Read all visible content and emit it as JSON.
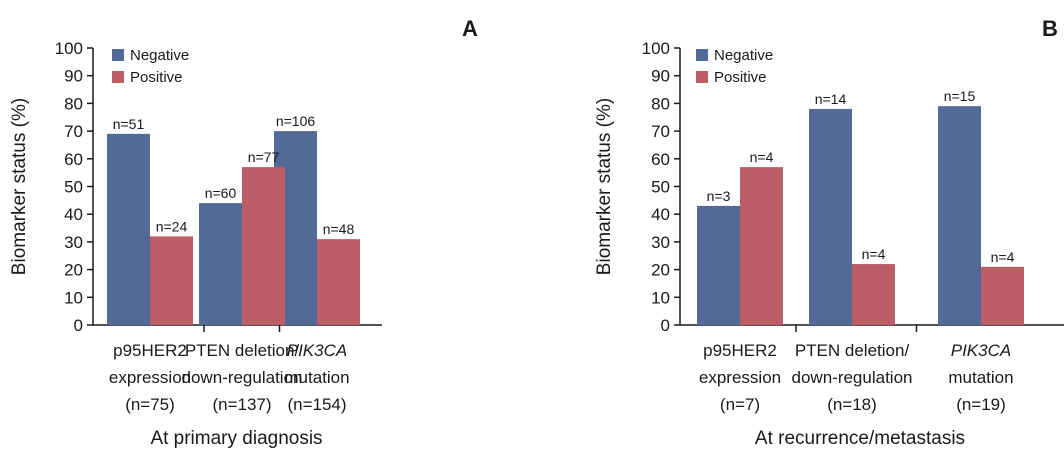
{
  "colors": {
    "negative": "#536a98",
    "positive": "#bc5e68",
    "axis": "#1a1a1a"
  },
  "chart_data": [
    {
      "type": "bar",
      "panel": "A",
      "xlabel": "At primary diagnosis",
      "ylabel": "Biomarker status (%)",
      "ylim": [
        0,
        100
      ],
      "yticks": [
        0,
        10,
        20,
        30,
        40,
        50,
        60,
        70,
        80,
        90,
        100
      ],
      "grid": false,
      "legend": "top-left",
      "categories": [
        {
          "line1": "p95HER2",
          "line2": "expression",
          "line3": "(n=75)",
          "italic1": false
        },
        {
          "line1": "PTEN deletion/",
          "line2": "down-regulation",
          "line3": "(n=137)",
          "italic1": false
        },
        {
          "line1": "PIK3CA",
          "line2": "mutation",
          "line3": "(n=154)",
          "italic1": true
        }
      ],
      "series": [
        {
          "name": "Negative",
          "values": [
            69,
            44,
            70
          ],
          "labels": [
            "n=51",
            "n=60",
            "n=106"
          ]
        },
        {
          "name": "Positive",
          "values": [
            32,
            57,
            31
          ],
          "labels": [
            "n=24",
            "n=77",
            "n=48"
          ]
        }
      ]
    },
    {
      "type": "bar",
      "panel": "B",
      "xlabel": "At recurrence/metastasis",
      "ylabel": "Biomarker status (%)",
      "ylim": [
        0,
        100
      ],
      "yticks": [
        0,
        10,
        20,
        30,
        40,
        50,
        60,
        70,
        80,
        90,
        100
      ],
      "grid": false,
      "legend": "top-left",
      "categories": [
        {
          "line1": "p95HER2",
          "line2": "expression",
          "line3": "(n=7)",
          "italic1": false
        },
        {
          "line1": "PTEN deletion/",
          "line2": "down-regulation",
          "line3": "(n=18)",
          "italic1": false
        },
        {
          "line1": "PIK3CA",
          "line2": "mutation",
          "line3": "(n=19)",
          "italic1": true
        }
      ],
      "series": [
        {
          "name": "Negative",
          "values": [
            43,
            78,
            79
          ],
          "labels": [
            "n=3",
            "n=14",
            "n=15"
          ]
        },
        {
          "name": "Positive",
          "values": [
            57,
            22,
            21
          ],
          "labels": [
            "n=4",
            "n=4",
            "n=4"
          ]
        }
      ]
    }
  ]
}
